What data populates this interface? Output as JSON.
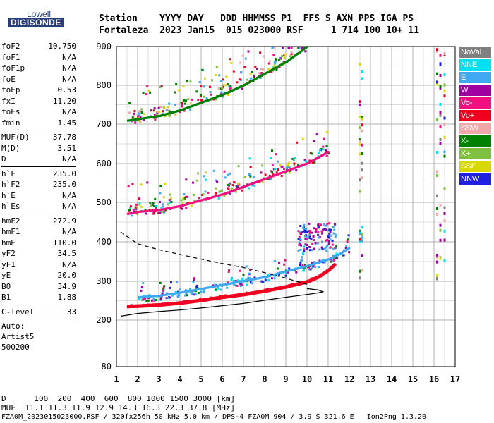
{
  "logo": {
    "top": "Lowell",
    "bottom": "DIGISONDE"
  },
  "header": {
    "line1": "Station    YYYY DAY   DDD HHMMSS P1  FFS S AXN PPS IGA PS",
    "line2": "Fortaleza  2023 Jan15  015 023000 RSF     1 714 100 10+ 11"
  },
  "params1": [
    {
      "k": "foF2",
      "v": "10.750"
    },
    {
      "k": "foF1",
      "v": "N/A"
    },
    {
      "k": "foF1p",
      "v": "N/A"
    },
    {
      "k": "foE",
      "v": "N/A"
    },
    {
      "k": "foEp",
      "v": "0.53"
    },
    {
      "k": "fxI",
      "v": "11.20"
    },
    {
      "k": "foEs",
      "v": "N/A"
    },
    {
      "k": "fmin",
      "v": "1.45"
    }
  ],
  "params2": [
    {
      "k": "MUF(D)",
      "v": "37.78"
    },
    {
      "k": "M(D)",
      "v": "3.51"
    },
    {
      "k": "D",
      "v": "N/A"
    }
  ],
  "params3": [
    {
      "k": "h`F",
      "v": "235.0"
    },
    {
      "k": "h`F2",
      "v": "235.0"
    },
    {
      "k": "h`E",
      "v": "N/A"
    },
    {
      "k": "h`Es",
      "v": "N/A"
    }
  ],
  "params4": [
    {
      "k": "hmF2",
      "v": "272.9"
    },
    {
      "k": "hmF1",
      "v": "N/A"
    },
    {
      "k": "hmE",
      "v": "110.0"
    },
    {
      "k": "yF2",
      "v": "34.5"
    },
    {
      "k": "yF1",
      "v": "N/A"
    },
    {
      "k": "yE",
      "v": "20.0"
    },
    {
      "k": "B0",
      "v": "34.9"
    },
    {
      "k": "B1",
      "v": "1.88"
    }
  ],
  "params5": [
    {
      "k": "C-level",
      "v": "33"
    }
  ],
  "auto": [
    "Auto:",
    "Artist5",
    "500200"
  ],
  "footer": {
    "d_line": "D      100  200  400  600  800 1000 1500 3000 [km]",
    "muf_line": "MUF  11.1 11.3 11.9 12.9 14.3 16.3 22.3 37.8 [MHz]",
    "file_line": "FZA0M_2023015023000.RSF / 320fx256h 50 kHz 5.0 km / DPS-4 FZA0M 904 / 3.9 S 321.6 E   Ion2Png 1.3.20"
  },
  "legend": [
    {
      "label": "NoVal",
      "color": "#808080"
    },
    {
      "label": "NNE",
      "color": "#00e0f0"
    },
    {
      "label": "E",
      "color": "#40a8f0"
    },
    {
      "label": "W",
      "color": "#a000a0"
    },
    {
      "label": "Vo-",
      "color": "#f01080"
    },
    {
      "label": "Vo+",
      "color": "#f00020"
    },
    {
      "label": "SSW",
      "color": "#f0a8a8"
    },
    {
      "label": "X-",
      "color": "#008000"
    },
    {
      "label": "X+",
      "color": "#80c040"
    },
    {
      "label": "SSE",
      "color": "#d8d800"
    },
    {
      "label": "NNW",
      "color": "#2020e0"
    }
  ],
  "chart_data": {
    "type": "scatter",
    "xlabel": "",
    "ylabel": "",
    "xlim": [
      1,
      17
    ],
    "ylim": [
      80,
      900
    ],
    "x_ticks": [
      1,
      2,
      3,
      4,
      5,
      6,
      7,
      8,
      9,
      10,
      11,
      12,
      13,
      14,
      15,
      16,
      17
    ],
    "y_ticks": [
      80,
      200,
      300,
      400,
      500,
      600,
      700,
      800,
      900
    ],
    "grid": true,
    "traces": [
      {
        "name": "o-trace F2 1st hop",
        "x": [
          1.5,
          2,
          3,
          4,
          5,
          6,
          7,
          8,
          9,
          10,
          10.5,
          11,
          11.3
        ],
        "y": [
          236,
          237,
          240,
          245,
          252,
          260,
          267,
          276,
          287,
          300,
          312,
          330,
          345
        ]
      },
      {
        "name": "x-trace F2 1st hop",
        "x": [
          2,
          3,
          4,
          5,
          6,
          7,
          8,
          9,
          10,
          11,
          11.5,
          12
        ],
        "y": [
          258,
          262,
          270,
          280,
          290,
          300,
          310,
          325,
          338,
          355,
          368,
          385
        ]
      },
      {
        "name": "F2 2nd hop",
        "x": [
          1.5,
          2,
          3,
          4,
          5,
          6,
          7,
          8,
          9,
          10,
          11
        ],
        "y": [
          470,
          475,
          480,
          490,
          505,
          520,
          540,
          560,
          580,
          600,
          630
        ]
      },
      {
        "name": "F2 3rd hop",
        "x": [
          1.5,
          2,
          3,
          4,
          5,
          6,
          7,
          8,
          9,
          10
        ],
        "y": [
          708,
          712,
          720,
          735,
          755,
          775,
          800,
          830,
          860,
          900
        ]
      }
    ],
    "profile_solid": {
      "x": [
        1.2,
        2,
        3,
        4,
        5,
        6,
        7,
        8,
        9,
        10,
        10.5,
        10.75,
        10.5,
        10
      ],
      "y": [
        210,
        217,
        222,
        226,
        231,
        237,
        243,
        251,
        259,
        266,
        270,
        273,
        278,
        281
      ]
    },
    "profile_dashed": {
      "x": [
        1.2,
        2,
        3,
        4,
        5,
        6,
        7,
        8,
        9,
        10
      ],
      "y": [
        425,
        395,
        380,
        368,
        356,
        345,
        335,
        322,
        308,
        292
      ]
    }
  }
}
